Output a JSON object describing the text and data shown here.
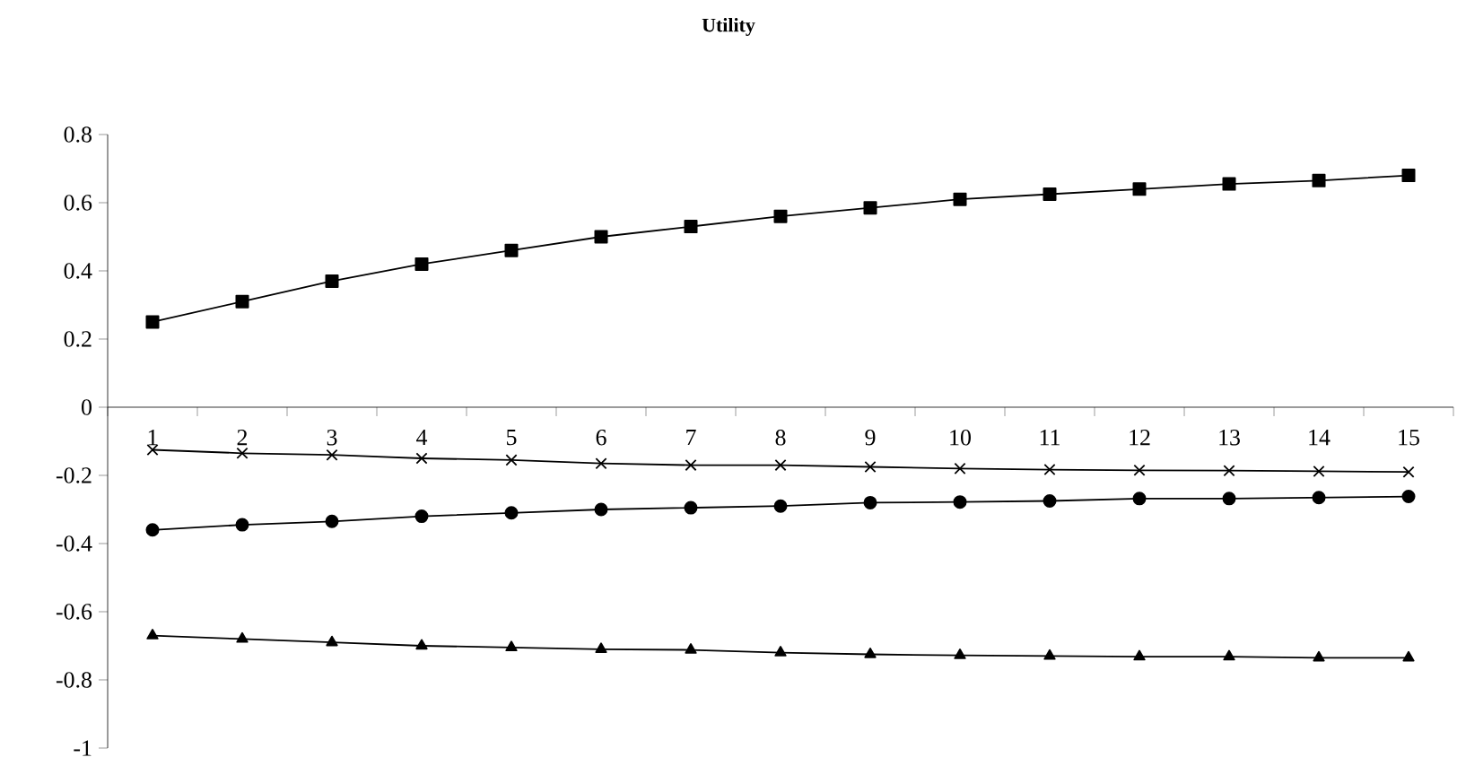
{
  "chart_data": {
    "type": "line",
    "title": "Utility",
    "categories": [
      "1",
      "2",
      "3",
      "4",
      "5",
      "6",
      "7",
      "8",
      "9",
      "10",
      "11",
      "12",
      "13",
      "14",
      "15"
    ],
    "series": [
      {
        "color": "#000000",
        "marker": "square",
        "values": [
          0.25,
          0.31,
          0.37,
          0.42,
          0.46,
          0.5,
          0.53,
          0.56,
          0.585,
          0.61,
          0.625,
          0.64,
          0.655,
          0.665,
          0.68
        ]
      },
      {
        "color": "#000000",
        "marker": "cross",
        "values": [
          -0.125,
          -0.135,
          -0.14,
          -0.15,
          -0.155,
          -0.165,
          -0.17,
          -0.17,
          -0.175,
          -0.18,
          -0.183,
          -0.185,
          -0.186,
          -0.188,
          -0.19
        ]
      },
      {
        "color": "#000000",
        "marker": "circle",
        "values": [
          -0.36,
          -0.345,
          -0.335,
          -0.32,
          -0.31,
          -0.3,
          -0.295,
          -0.29,
          -0.28,
          -0.278,
          -0.275,
          -0.268,
          -0.268,
          -0.265,
          -0.262
        ]
      },
      {
        "color": "#000000",
        "marker": "triangle",
        "values": [
          -0.67,
          -0.68,
          -0.69,
          -0.7,
          -0.705,
          -0.71,
          -0.712,
          -0.72,
          -0.725,
          -0.728,
          -0.73,
          -0.732,
          -0.732,
          -0.735,
          -0.735
        ]
      }
    ],
    "ylim": [
      -1,
      0.8
    ],
    "yticks": [
      -1,
      -0.8,
      -0.6,
      -0.4,
      -0.2,
      0,
      0.2,
      0.4,
      0.6,
      0.8
    ],
    "line_style": "solid"
  }
}
